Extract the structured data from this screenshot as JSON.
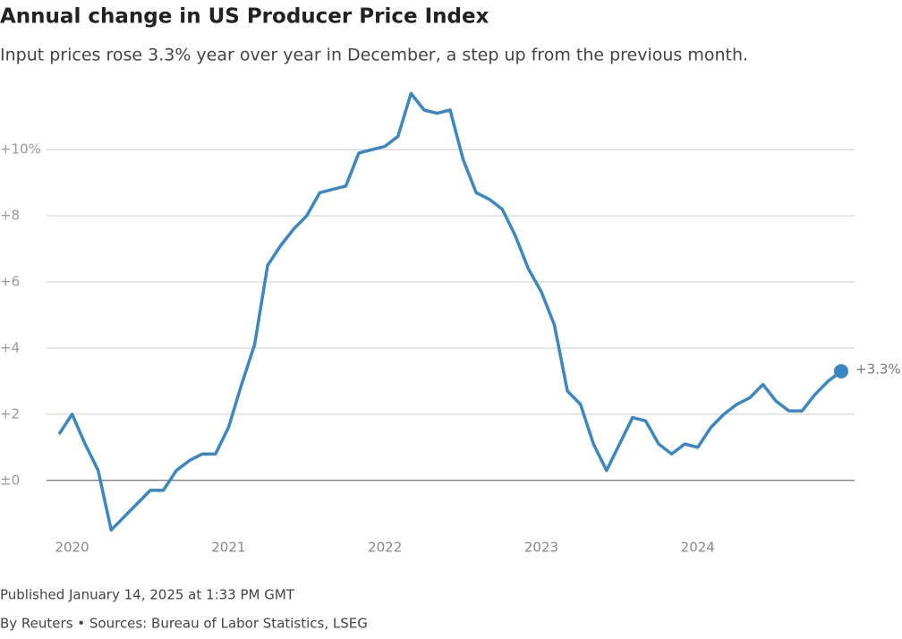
{
  "chart_data": {
    "type": "line",
    "title": "Annual change in US Producer Price Index",
    "subtitle": "Input prices rose 3.3% year over year in December, a step up from the previous month.",
    "footer": [
      "Published January 14, 2025 at 1:33 PM GMT",
      "By Reuters • Sources: Bureau of Labor Statistics, LSEG"
    ],
    "categories": [
      null,
      "2020",
      null,
      null,
      null,
      null,
      null,
      null,
      null,
      null,
      null,
      null,
      null,
      "2021",
      null,
      null,
      null,
      null,
      null,
      null,
      null,
      null,
      null,
      null,
      null,
      "2022",
      null,
      null,
      null,
      null,
      null,
      null,
      null,
      null,
      null,
      null,
      null,
      "2023",
      null,
      null,
      null,
      null,
      null,
      null,
      null,
      null,
      null,
      null,
      null,
      "2024",
      null,
      null,
      null,
      null,
      null,
      null,
      null,
      null,
      null,
      null,
      null
    ],
    "series": [
      {
        "color": "#3a87c4",
        "values": [
          1.4,
          2.0,
          1.1,
          0.3,
          -1.5,
          -1.1,
          -0.7,
          -0.3,
          -0.3,
          0.3,
          0.6,
          0.8,
          0.8,
          1.6,
          2.9,
          4.1,
          6.5,
          7.1,
          7.6,
          8.0,
          8.7,
          8.8,
          8.9,
          9.9,
          10.0,
          10.1,
          10.4,
          11.7,
          11.2,
          11.1,
          11.2,
          9.7,
          8.7,
          8.5,
          8.2,
          7.4,
          6.4,
          5.7,
          4.7,
          2.7,
          2.3,
          1.1,
          0.3,
          1.1,
          1.9,
          1.8,
          1.1,
          0.8,
          1.1,
          1.0,
          1.6,
          2.0,
          2.3,
          2.5,
          2.9,
          2.4,
          2.1,
          2.1,
          2.6,
          3.0,
          3.3
        ],
        "value_labels": [
          null,
          null,
          null,
          null,
          null,
          null,
          null,
          null,
          null,
          null,
          null,
          null,
          null,
          null,
          null,
          null,
          null,
          null,
          null,
          null,
          null,
          null,
          null,
          null,
          null,
          null,
          null,
          null,
          null,
          null,
          null,
          null,
          null,
          null,
          null,
          null,
          null,
          null,
          null,
          null,
          null,
          null,
          null,
          null,
          null,
          null,
          null,
          null,
          null,
          null,
          null,
          null,
          null,
          null,
          null,
          null,
          null,
          null,
          null,
          null,
          "+3.3%"
        ]
      }
    ],
    "ylim": [
      -1.9,
      11.9
    ],
    "yticks": [
      {
        "value": 0,
        "label": "±0"
      },
      {
        "value": 2,
        "label": "+2"
      },
      {
        "value": 4,
        "label": "+4"
      },
      {
        "value": 6,
        "label": "+6"
      },
      {
        "value": 8,
        "label": "+8"
      },
      {
        "value": 10,
        "label": "+10%"
      }
    ],
    "grid": true
  }
}
